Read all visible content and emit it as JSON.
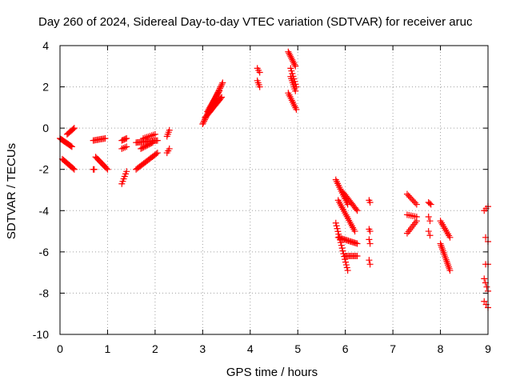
{
  "chart_data": {
    "type": "scatter",
    "title": "Day 260 of 2024, Sidereal Day-to-day VTEC variation (SDTVAR) for receiver aruc",
    "xlabel": "GPS time / hours",
    "ylabel": "SDTVAR / TECUs",
    "xlim": [
      0,
      9
    ],
    "ylim": [
      -10,
      4
    ],
    "xticks": [
      0,
      1,
      2,
      3,
      4,
      5,
      6,
      7,
      8,
      9
    ],
    "yticks": [
      -10,
      -8,
      -6,
      -4,
      -2,
      0,
      2,
      4
    ],
    "grid": true,
    "marker": "+",
    "color": "#ff0000",
    "tracks": [
      {
        "from": [
          0.0,
          -0.5
        ],
        "to": [
          0.25,
          -0.9
        ],
        "n": 14
      },
      {
        "from": [
          0.15,
          -0.3
        ],
        "to": [
          0.3,
          0.0
        ],
        "n": 8
      },
      {
        "from": [
          0.05,
          -1.5
        ],
        "to": [
          0.3,
          -2.0
        ],
        "n": 12
      },
      {
        "from": [
          0.7,
          -0.6
        ],
        "to": [
          0.95,
          -0.5
        ],
        "n": 10
      },
      {
        "from": [
          0.75,
          -1.4
        ],
        "to": [
          1.0,
          -2.0
        ],
        "n": 12
      },
      {
        "from": [
          0.7,
          -2.0
        ],
        "to": [
          0.72,
          -2.0
        ],
        "n": 2
      },
      {
        "from": [
          1.3,
          -0.6
        ],
        "to": [
          1.4,
          -0.5
        ],
        "n": 5
      },
      {
        "from": [
          1.3,
          -1.0
        ],
        "to": [
          1.4,
          -0.9
        ],
        "n": 4
      },
      {
        "from": [
          1.3,
          -2.7
        ],
        "to": [
          1.4,
          -2.1
        ],
        "n": 6
      },
      {
        "from": [
          1.6,
          -0.7
        ],
        "to": [
          2.05,
          -0.6
        ],
        "n": 18
      },
      {
        "from": [
          1.6,
          -2.0
        ],
        "to": [
          2.05,
          -1.2
        ],
        "n": 18
      },
      {
        "from": [
          1.7,
          -1.0
        ],
        "to": [
          1.95,
          -0.7
        ],
        "n": 10
      },
      {
        "from": [
          1.75,
          -0.5
        ],
        "to": [
          2.0,
          -0.3
        ],
        "n": 8
      },
      {
        "from": [
          2.25,
          -0.4
        ],
        "to": [
          2.3,
          -0.1
        ],
        "n": 4
      },
      {
        "from": [
          2.25,
          -1.2
        ],
        "to": [
          2.3,
          -1.0
        ],
        "n": 3
      },
      {
        "from": [
          3.0,
          0.2
        ],
        "to": [
          3.42,
          2.2
        ],
        "n": 30
      },
      {
        "from": [
          3.05,
          0.5
        ],
        "to": [
          3.4,
          1.5
        ],
        "n": 20
      },
      {
        "from": [
          3.1,
          0.8
        ],
        "to": [
          3.35,
          1.8
        ],
        "n": 16
      },
      {
        "from": [
          4.15,
          2.9
        ],
        "to": [
          4.2,
          2.7
        ],
        "n": 3
      },
      {
        "from": [
          4.15,
          2.3
        ],
        "to": [
          4.2,
          2.0
        ],
        "n": 4
      },
      {
        "from": [
          4.8,
          3.7
        ],
        "to": [
          4.95,
          3.0
        ],
        "n": 10
      },
      {
        "from": [
          4.85,
          2.5
        ],
        "to": [
          4.95,
          1.8
        ],
        "n": 8
      },
      {
        "from": [
          4.8,
          1.7
        ],
        "to": [
          4.97,
          0.9
        ],
        "n": 10
      },
      {
        "from": [
          4.85,
          2.9
        ],
        "to": [
          4.97,
          2.0
        ],
        "n": 8
      },
      {
        "from": [
          5.8,
          -2.5
        ],
        "to": [
          6.05,
          -3.7
        ],
        "n": 14
      },
      {
        "from": [
          5.95,
          -3.1
        ],
        "to": [
          6.25,
          -4.0
        ],
        "n": 14
      },
      {
        "from": [
          5.85,
          -3.5
        ],
        "to": [
          6.2,
          -5.0
        ],
        "n": 18
      },
      {
        "from": [
          5.8,
          -4.6
        ],
        "to": [
          6.05,
          -6.9
        ],
        "n": 18
      },
      {
        "from": [
          5.85,
          -5.3
        ],
        "to": [
          6.25,
          -5.6
        ],
        "n": 16
      },
      {
        "from": [
          6.0,
          -6.2
        ],
        "to": [
          6.25,
          -6.2
        ],
        "n": 10
      },
      {
        "from": [
          6.5,
          -3.5
        ],
        "to": [
          6.52,
          -3.6
        ],
        "n": 2
      },
      {
        "from": [
          6.5,
          -4.9
        ],
        "to": [
          6.52,
          -5.0
        ],
        "n": 2
      },
      {
        "from": [
          6.5,
          -5.4
        ],
        "to": [
          6.52,
          -5.6
        ],
        "n": 2
      },
      {
        "from": [
          6.5,
          -6.4
        ],
        "to": [
          6.52,
          -6.6
        ],
        "n": 2
      },
      {
        "from": [
          7.3,
          -3.2
        ],
        "to": [
          7.5,
          -3.7
        ],
        "n": 8
      },
      {
        "from": [
          7.3,
          -4.2
        ],
        "to": [
          7.5,
          -4.3
        ],
        "n": 6
      },
      {
        "from": [
          7.3,
          -5.1
        ],
        "to": [
          7.5,
          -4.5
        ],
        "n": 8
      },
      {
        "from": [
          7.75,
          -3.6
        ],
        "to": [
          7.8,
          -3.7
        ],
        "n": 3
      },
      {
        "from": [
          7.75,
          -4.3
        ],
        "to": [
          7.78,
          -4.5
        ],
        "n": 2
      },
      {
        "from": [
          7.75,
          -5.0
        ],
        "to": [
          7.78,
          -5.2
        ],
        "n": 2
      },
      {
        "from": [
          8.0,
          -4.5
        ],
        "to": [
          8.2,
          -5.3
        ],
        "n": 10
      },
      {
        "from": [
          8.0,
          -5.6
        ],
        "to": [
          8.2,
          -6.9
        ],
        "n": 16
      },
      {
        "from": [
          8.92,
          -4.0
        ],
        "to": [
          9.0,
          -3.8
        ],
        "n": 3
      },
      {
        "from": [
          8.95,
          -5.3
        ],
        "to": [
          9.0,
          -5.5
        ],
        "n": 2
      },
      {
        "from": [
          8.95,
          -6.6
        ],
        "to": [
          9.0,
          -6.6
        ],
        "n": 2
      },
      {
        "from": [
          8.92,
          -7.3
        ],
        "to": [
          9.0,
          -7.9
        ],
        "n": 4
      },
      {
        "from": [
          8.92,
          -8.4
        ],
        "to": [
          9.0,
          -8.7
        ],
        "n": 3
      }
    ]
  }
}
